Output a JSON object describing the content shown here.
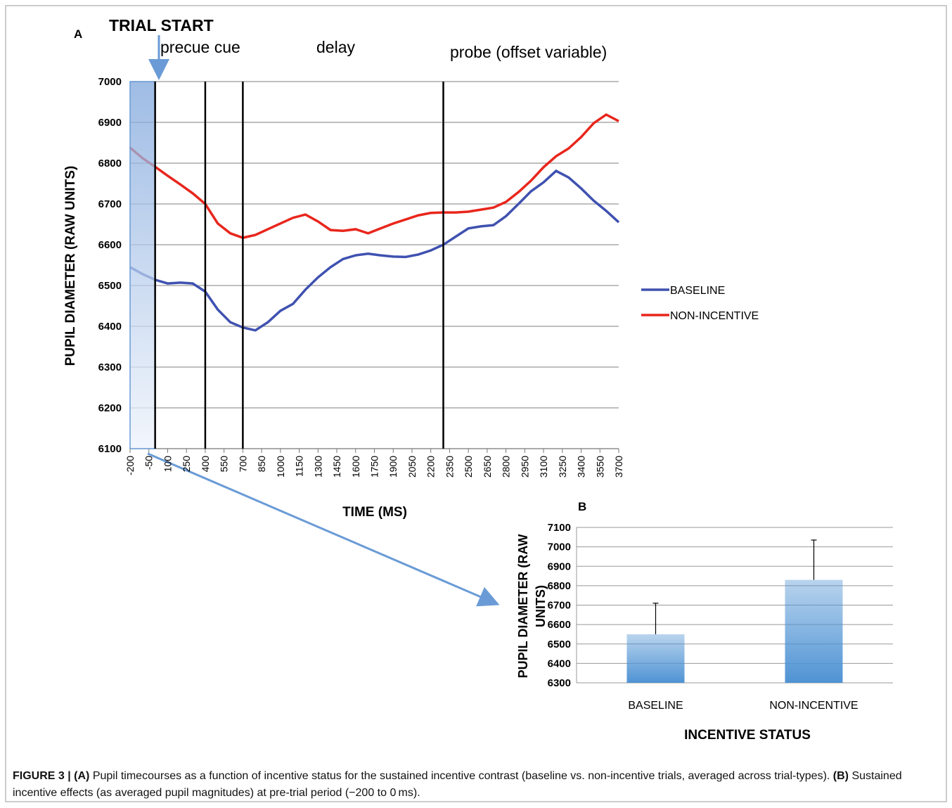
{
  "chart_data": [
    {
      "type": "line",
      "title": "A",
      "annotations": [
        "TRIAL START",
        "precue cue",
        "delay",
        "probe (offset variable)"
      ],
      "x": [
        -200,
        -100,
        0,
        100,
        200,
        300,
        400,
        500,
        600,
        700,
        800,
        900,
        1000,
        1100,
        1200,
        1300,
        1400,
        1500,
        1600,
        1700,
        1800,
        1900,
        2000,
        2100,
        2200,
        2300,
        2400,
        2500,
        2600,
        2700,
        2800,
        2900,
        3000,
        3100,
        3200,
        3300,
        3400,
        3500,
        3600,
        3700
      ],
      "series": [
        {
          "name": "BASELINE",
          "color": "#3f51b0",
          "values": [
            6545,
            6528,
            6514,
            6505,
            6507,
            6505,
            6485,
            6441,
            6410,
            6397,
            6390,
            6410,
            6438,
            6455,
            6490,
            6520,
            6545,
            6565,
            6574,
            6578,
            6574,
            6571,
            6570,
            6576,
            6586,
            6600,
            6620,
            6640,
            6645,
            6648,
            6670,
            6700,
            6731,
            6753,
            6781,
            6765,
            6738,
            6708,
            6683,
            6655
          ]
        },
        {
          "name": "NON-INCENTIVE",
          "color": "#e8261c",
          "values": [
            6838,
            6812,
            6791,
            6769,
            6748,
            6726,
            6700,
            6652,
            6628,
            6617,
            6624,
            6638,
            6652,
            6666,
            6674,
            6657,
            6636,
            6634,
            6638,
            6628,
            6640,
            6652,
            6662,
            6672,
            6678,
            6679,
            6679,
            6681,
            6686,
            6691,
            6705,
            6729,
            6757,
            6790,
            6817,
            6836,
            6864,
            6898,
            6919,
            6903
          ]
        }
      ],
      "xlim": [
        -200,
        3700
      ],
      "xticks": [
        -200,
        -50,
        100,
        250,
        400,
        550,
        700,
        850,
        1000,
        1150,
        1300,
        1450,
        1600,
        1750,
        1900,
        2050,
        2200,
        2350,
        2500,
        2650,
        2800,
        2950,
        3100,
        3250,
        3400,
        3550,
        3700
      ],
      "ylim": [
        6100,
        7000
      ],
      "yticks": [
        6100,
        6200,
        6300,
        6400,
        6500,
        6600,
        6700,
        6800,
        6900,
        7000
      ],
      "markers": [
        0,
        400,
        700,
        2300
      ],
      "highlight": [
        -200,
        0
      ],
      "xlabel": "TIME (MS)",
      "ylabel": "PUPIL DIAMETER (RAW UNITS)",
      "grid": true,
      "legend": "right"
    },
    {
      "type": "bar",
      "title": "B",
      "categories": [
        "BASELINE",
        "NON-INCENTIVE"
      ],
      "values": [
        6550,
        6830
      ],
      "errors": [
        160,
        205
      ],
      "color": "#4f93d4",
      "ylim": [
        6300,
        7100
      ],
      "yticks": [
        6300,
        6400,
        6500,
        6600,
        6700,
        6800,
        6900,
        7000,
        7100
      ],
      "xlabel": "INCENTIVE STATUS",
      "ylabel": [
        "PUPIL DIAMETER (RAW",
        "UNITS)"
      ],
      "grid": true
    }
  ],
  "caption": [
    "FIGURE 3 | (A)",
    " Pupil timecourses as a function of incentive status for the sustained incentive contrast (baseline vs. non-incentive trials, averaged across trial-types). ",
    "(B)",
    " Sustained incentive effects (as averaged pupil magnitudes) at pre-trial period (−200 to 0 ms)."
  ]
}
